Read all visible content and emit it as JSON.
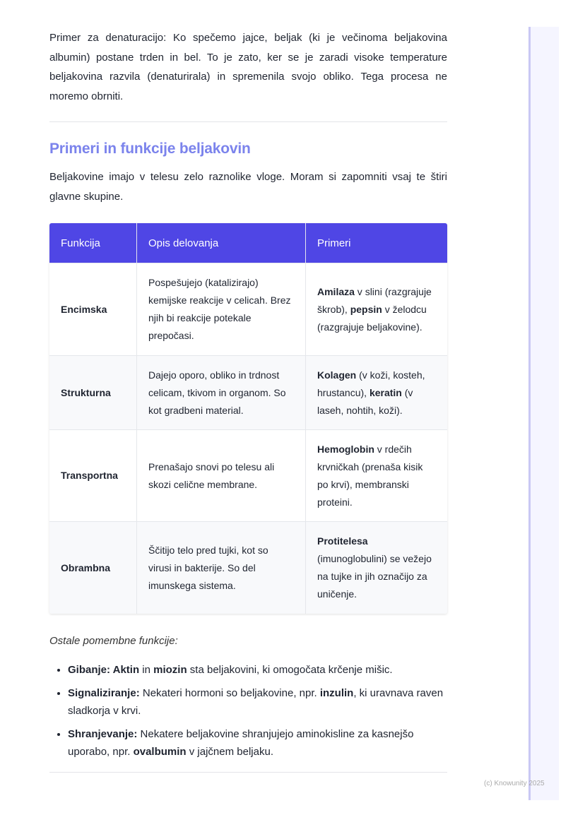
{
  "intro": "Primer za denaturacijo: Ko spečemo jajce, beljak (ki je večinoma beljakovina albumin) postane trden in bel. To je zato, ker se je zaradi visoke temperature beljakovina razvila (denaturirala) in spremenila svojo obliko. Tega procesa ne moremo obrniti.",
  "heading": "Primeri in funkcije beljakovin",
  "lead": "Beljakovine imajo v telesu zelo raznolike vloge. Moram si zapomniti vsaj te štiri glavne skupine.",
  "table": {
    "headers": [
      "Funkcija",
      "Opis delovanja",
      "Primeri"
    ],
    "header_color": "#4f46e5",
    "rows": [
      {
        "fn": "Encimska",
        "desc": "Pospešujejo (katalizirajo) kemijske reakcije v celicah. Brez njih bi reakcije potekale prepočasi.",
        "ex": [
          {
            "t": "Amilaza",
            "b": true
          },
          {
            "t": " v slini (razgrajuje škrob), "
          },
          {
            "t": "pepsin",
            "b": true
          },
          {
            "t": " v želodcu (razgrajuje beljakovine)."
          }
        ]
      },
      {
        "fn": "Strukturna",
        "desc": "Dajejo oporo, obliko in trdnost celicam, tkivom in organom. So kot gradbeni material.",
        "ex": [
          {
            "t": "Kolagen",
            "b": true
          },
          {
            "t": " (v koži, kosteh, hrustancu), "
          },
          {
            "t": "keratin",
            "b": true
          },
          {
            "t": " (v laseh, nohtih, koži)."
          }
        ]
      },
      {
        "fn": "Transportna",
        "desc": "Prenašajo snovi po telesu ali skozi celične membrane.",
        "ex": [
          {
            "t": "Hemoglobin",
            "b": true
          },
          {
            "t": " v rdečih krvničkah (prenaša kisik po krvi), membranski proteini."
          }
        ]
      },
      {
        "fn": "Obrambna",
        "desc": "Ščitijo telo pred tujki, kot so virusi in bakterije. So del imunskega sistema.",
        "ex": [
          {
            "t": "Protitelesa",
            "b": true
          },
          {
            "t": " (imunoglobulini) se vežejo na tujke in jih označijo za uničenje."
          }
        ]
      }
    ]
  },
  "other_title": "Ostale pomembne funkcije:",
  "bullets": [
    [
      {
        "t": "Gibanje: Aktin",
        "b": true
      },
      {
        "t": " in "
      },
      {
        "t": "miozin",
        "b": true
      },
      {
        "t": " sta beljakovini, ki omogočata krčenje mišic."
      }
    ],
    [
      {
        "t": "Signaliziranje:",
        "b": true
      },
      {
        "t": " Nekateri hormoni so beljakovine, npr. "
      },
      {
        "t": "inzulin",
        "b": true
      },
      {
        "t": ", ki uravnava raven sladkorja v krvi."
      }
    ],
    [
      {
        "t": "Shranjevanje:",
        "b": true
      },
      {
        "t": " Nekatere beljakovine shranjujejo aminokisline za kasnejšo uporabo, npr. "
      },
      {
        "t": "ovalbumin",
        "b": true
      },
      {
        "t": " v jajčnem beljaku."
      }
    ]
  ],
  "footer": "(c) Knowunity 2025"
}
